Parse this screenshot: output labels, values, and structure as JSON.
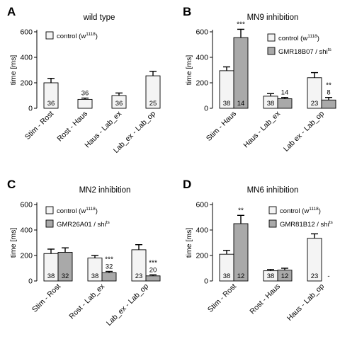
{
  "colors": {
    "control": "#f4f4f4",
    "experimental": "#a9a9a9",
    "stroke": "#000000"
  },
  "chart_data": [
    {
      "letter": "A",
      "type": "bar",
      "title": "wild type",
      "ylabel": "time [ms]",
      "ylim": [
        0,
        600
      ],
      "yticks": [
        0,
        200,
        400,
        600
      ],
      "categories": [
        "Stim - Rost",
        "Rost - Haus",
        "Haus - Lab_ex",
        "Lab_ex - Lab_op"
      ],
      "series": [
        {
          "name": "control (w",
          "sup": "1118",
          "suffix": ")",
          "kind": "control",
          "values": [
            200,
            70,
            100,
            255
          ],
          "errors": [
            35,
            10,
            20,
            35
          ],
          "n": [
            "36",
            "36",
            "36",
            "25"
          ],
          "sig": [
            "",
            "",
            "",
            ""
          ]
        }
      ]
    },
    {
      "letter": "B",
      "type": "bar",
      "title": "MN9 inhibition",
      "ylabel": "time [ms]",
      "ylim": [
        0,
        600
      ],
      "yticks": [
        0,
        200,
        400,
        600
      ],
      "categories": [
        "Stim - Haus",
        "Haus - Lab_ex",
        "Lab ex - Lab_op"
      ],
      "series": [
        {
          "name": "control (w",
          "sup": "1118",
          "suffix": ")",
          "kind": "control",
          "values": [
            295,
            95,
            240
          ],
          "errors": [
            30,
            20,
            40
          ],
          "n": [
            "38",
            "38",
            "23"
          ],
          "sig": [
            "",
            "",
            ""
          ]
        },
        {
          "name": "GMR18B07 / shi",
          "sup": "ts",
          "suffix": "",
          "kind": "experimental",
          "values": [
            555,
            75,
            65
          ],
          "errors": [
            65,
            10,
            20
          ],
          "n": [
            "14",
            "14",
            "8"
          ],
          "sig": [
            "***",
            "",
            "**"
          ]
        }
      ]
    },
    {
      "letter": "C",
      "type": "bar",
      "title": "MN2 inhibition",
      "ylabel": "time [ms]",
      "ylim": [
        0,
        600
      ],
      "yticks": [
        0,
        200,
        400,
        600
      ],
      "categories": [
        "Stim - Rost",
        "Rost - Lab_ex",
        "Lab_ex - Lab_op"
      ],
      "series": [
        {
          "name": "control (w",
          "sup": "1118",
          "suffix": ")",
          "kind": "control",
          "values": [
            215,
            180,
            245
          ],
          "errors": [
            35,
            20,
            40
          ],
          "n": [
            "38",
            "38",
            "23"
          ],
          "sig": [
            "",
            "",
            ""
          ]
        },
        {
          "name": "GMR26A01 / shi",
          "sup": "ts",
          "suffix": "",
          "kind": "experimental",
          "values": [
            225,
            65,
            40
          ],
          "errors": [
            35,
            10,
            8
          ],
          "n": [
            "32",
            "32",
            "20"
          ],
          "sig": [
            "",
            "***",
            "***"
          ]
        }
      ]
    },
    {
      "letter": "D",
      "type": "bar",
      "title": "MN6 inhibition",
      "ylabel": "time [ms]",
      "ylim": [
        0,
        600
      ],
      "yticks": [
        0,
        200,
        400,
        600
      ],
      "categories": [
        "Stim - Rost",
        "Rost - Haus",
        "Haus - Lab_op"
      ],
      "series": [
        {
          "name": "control (w",
          "sup": "1118",
          "suffix": ")",
          "kind": "control",
          "values": [
            210,
            80,
            335
          ],
          "errors": [
            30,
            10,
            35
          ],
          "n": [
            "38",
            "38",
            "23"
          ],
          "sig": [
            "",
            "",
            ""
          ]
        },
        {
          "name": "GMR81B12 / shi",
          "sup": "ts",
          "suffix": "",
          "kind": "experimental",
          "values": [
            450,
            85,
            null
          ],
          "errors": [
            65,
            15,
            0
          ],
          "n": [
            "12",
            "12",
            "-"
          ],
          "sig": [
            "**",
            "",
            ""
          ]
        }
      ]
    }
  ]
}
